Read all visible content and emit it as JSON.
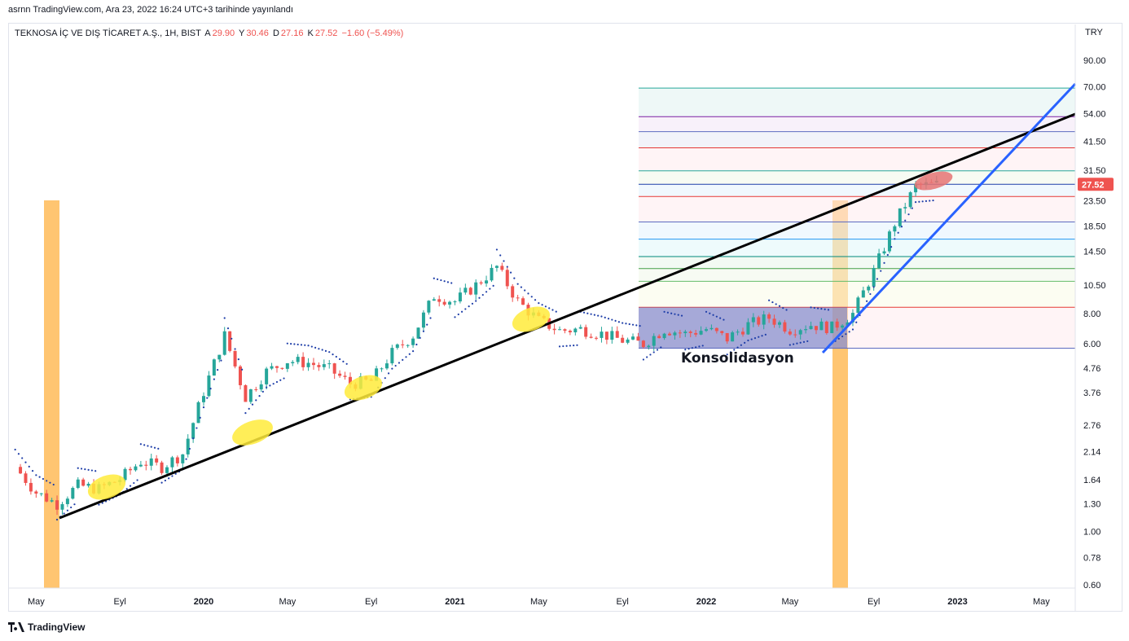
{
  "header": {
    "published_caption": "asrnn TradingView.com, Ara 23, 2022 16:24 UTC+3 tarihinde yayınlandı"
  },
  "legend": {
    "symbol": "TEKNOSA İÇ VE DIŞ TİCARET A.Ş., 1H, BIST",
    "open_label": "A",
    "open_value": "29.90",
    "high_label": "Y",
    "high_value": "30.46",
    "low_label": "D",
    "low_value": "27.16",
    "close_label": "K",
    "close_value": "27.52",
    "change": "−1.60 (−5.49%)"
  },
  "price_axis": {
    "currency": "TRY",
    "ticks": [
      "90.00",
      "70.00",
      "54.00",
      "41.50",
      "31.50",
      "23.50",
      "18.50",
      "14.50",
      "10.50",
      "8.00",
      "6.00",
      "4.76",
      "3.76",
      "2.76",
      "2.14",
      "1.64",
      "1.30",
      "1.00",
      "0.78",
      "0.60"
    ],
    "last_price_label": "27.52"
  },
  "time_axis": {
    "ticks": [
      "May",
      "Eyl",
      "2020",
      "May",
      "Eyl",
      "2021",
      "May",
      "Eyl",
      "2022",
      "May",
      "Eyl",
      "2023",
      "May"
    ]
  },
  "annotations": {
    "consolidation_label": "Konsolidasyon"
  },
  "footer": {
    "brand": "TradingView"
  },
  "colors": {
    "up": "#26a69a",
    "down": "#ef5350",
    "psar": "#1e3ea8",
    "trend_black": "#000000",
    "trend_blue": "#2962ff",
    "orange_band": "#ffb74d",
    "yellow_mark": "#ffeb3b",
    "consolidation_box": "#5c6bc0",
    "price_tag": "#ef5350"
  },
  "chart_data": {
    "type": "candlestick",
    "title": "TEKNOSA İÇ VE DIŞ TİCARET A.Ş., 1H, BIST",
    "y_scale": "log",
    "ylim": [
      0.6,
      90
    ],
    "x_range": [
      "2019-04",
      "2023-06"
    ],
    "grid": false,
    "series": [
      {
        "name": "price",
        "points": [
          [
            "2019-04",
            1.85
          ],
          [
            "2019-05",
            1.45
          ],
          [
            "2019-06",
            1.3
          ],
          [
            "2019-07",
            1.55
          ],
          [
            "2019-08",
            1.5
          ],
          [
            "2019-09",
            1.65
          ],
          [
            "2019-10",
            1.95
          ],
          [
            "2019-11",
            1.85
          ],
          [
            "2019-12",
            2.1
          ],
          [
            "2020-01",
            3.8
          ],
          [
            "2020-02",
            6.5
          ],
          [
            "2020-03",
            3.6
          ],
          [
            "2020-04",
            4.6
          ],
          [
            "2020-05",
            5.1
          ],
          [
            "2020-06",
            5.0
          ],
          [
            "2020-07",
            4.7
          ],
          [
            "2020-08",
            4.1
          ],
          [
            "2020-09",
            4.2
          ],
          [
            "2020-10",
            5.5
          ],
          [
            "2020-11",
            6.5
          ],
          [
            "2020-12",
            9.5
          ],
          [
            "2021-01",
            9.0
          ],
          [
            "2021-02",
            10.5
          ],
          [
            "2021-03",
            12.5
          ],
          [
            "2021-04",
            9.0
          ],
          [
            "2021-05",
            7.5
          ],
          [
            "2021-06",
            6.8
          ],
          [
            "2021-07",
            6.9
          ],
          [
            "2021-08",
            6.6
          ],
          [
            "2021-09",
            6.2
          ],
          [
            "2021-10",
            6.0
          ],
          [
            "2021-11",
            6.9
          ],
          [
            "2021-12",
            6.6
          ],
          [
            "2022-01",
            6.9
          ],
          [
            "2022-02",
            6.3
          ],
          [
            "2022-03",
            7.2
          ],
          [
            "2022-04",
            7.7
          ],
          [
            "2022-05",
            6.9
          ],
          [
            "2022-06",
            7.2
          ],
          [
            "2022-07",
            7.0
          ],
          [
            "2022-08",
            8.0
          ],
          [
            "2022-09",
            12.0
          ],
          [
            "2022-10",
            19.0
          ],
          [
            "2022-11",
            27.0
          ],
          [
            "2022-12",
            27.52
          ]
        ]
      }
    ],
    "horizontal_levels": [
      69.0,
      52.5,
      45.5,
      39.0,
      31.3,
      27.52,
      24.5,
      19.2,
      16.3,
      13.8,
      12.3,
      10.9,
      8.5,
      5.75
    ],
    "annotations": [
      "Konsolidasyon"
    ]
  }
}
